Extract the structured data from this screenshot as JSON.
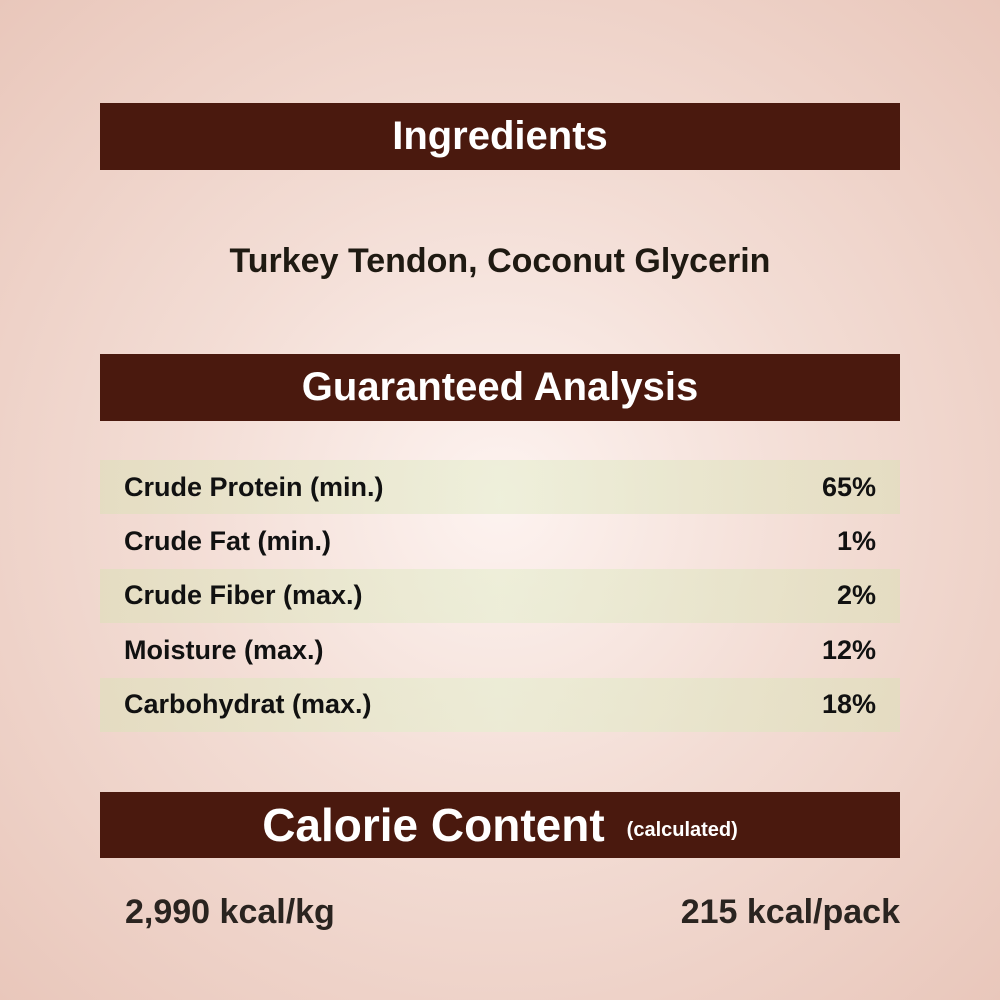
{
  "ingredients": {
    "heading": "Ingredients",
    "text": "Turkey Tendon, Coconut Glycerin"
  },
  "analysis": {
    "heading": "Guaranteed Analysis",
    "rows": [
      {
        "label": "Crude Protein (min.)",
        "value": "65%"
      },
      {
        "label": "Crude Fat (min.)",
        "value": "1%"
      },
      {
        "label": "Crude Fiber (max.)",
        "value": "2%"
      },
      {
        "label": "Moisture (max.)",
        "value": "12%"
      },
      {
        "label": "Carbohydrat (max.)",
        "value": "18%"
      }
    ]
  },
  "calorie": {
    "heading": "Calorie Content",
    "subheading": "(calculated)",
    "per_kg": "2,990 kcal/kg",
    "per_pack": "215 kcal/pack"
  },
  "colors": {
    "header_bar": "#4a190e",
    "background": "#f3ddd5",
    "row_shade": "#e3e2c4"
  }
}
